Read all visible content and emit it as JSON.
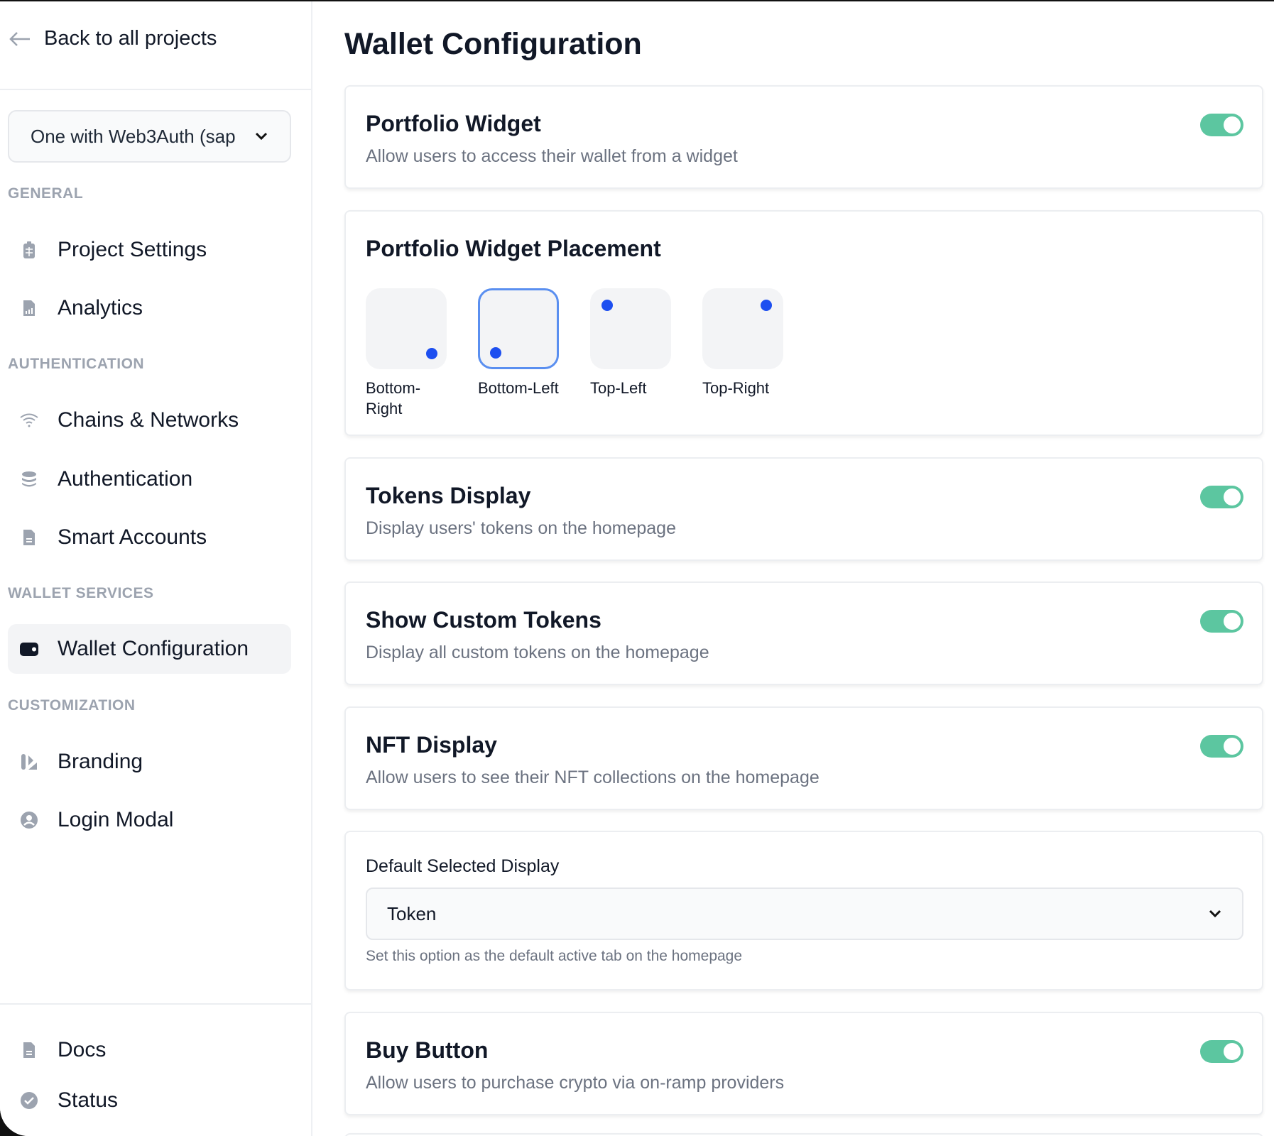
{
  "sidebar": {
    "back_label": "Back to all projects",
    "project_select": "One with Web3Auth (sap",
    "sections": [
      "GENERAL",
      "AUTHENTICATION",
      "WALLET SERVICES",
      "CUSTOMIZATION"
    ],
    "items": [
      {
        "label": "Project Settings",
        "icon": "clipboard-icon"
      },
      {
        "label": "Analytics",
        "icon": "analytics-icon"
      },
      {
        "label": "Chains & Networks",
        "icon": "wifi-icon"
      },
      {
        "label": "Authentication",
        "icon": "database-icon"
      },
      {
        "label": "Smart Accounts",
        "icon": "document-icon"
      },
      {
        "label": "Wallet Configuration",
        "icon": "wallet-icon",
        "active": true
      },
      {
        "label": "Branding",
        "icon": "branding-icon"
      },
      {
        "label": "Login Modal",
        "icon": "user-circle-icon"
      }
    ],
    "footer": [
      {
        "label": "Docs",
        "icon": "document-icon"
      },
      {
        "label": "Status",
        "icon": "check-circle-icon"
      }
    ]
  },
  "main": {
    "title": "Wallet Configuration",
    "portfolio_widget": {
      "title": "Portfolio Widget",
      "desc": "Allow users to access their wallet from a widget",
      "enabled": true
    },
    "placement": {
      "title": "Portfolio Widget Placement",
      "options": [
        "Bottom-Right",
        "Bottom-Left",
        "Top-Left",
        "Top-Right"
      ],
      "selected": "Bottom-Left"
    },
    "tokens": {
      "title": "Tokens Display",
      "desc": "Display users' tokens on the homepage",
      "enabled": true
    },
    "custom_tokens": {
      "title": "Show Custom Tokens",
      "desc": "Display all custom tokens on the homepage",
      "enabled": true
    },
    "nft": {
      "title": "NFT Display",
      "desc": "Allow users to see their NFT collections on the homepage",
      "enabled": true
    },
    "default_display": {
      "label": "Default Selected Display",
      "value": "Token",
      "help": "Set this option as the default active tab on the homepage"
    },
    "buy": {
      "title": "Buy Button",
      "desc": "Allow users to purchase crypto via on-ramp providers",
      "enabled": true
    }
  },
  "colors": {
    "toggle_on": "#5cc6a0",
    "accent": "#1d4ff0",
    "selected_border": "#5a8ff0"
  }
}
